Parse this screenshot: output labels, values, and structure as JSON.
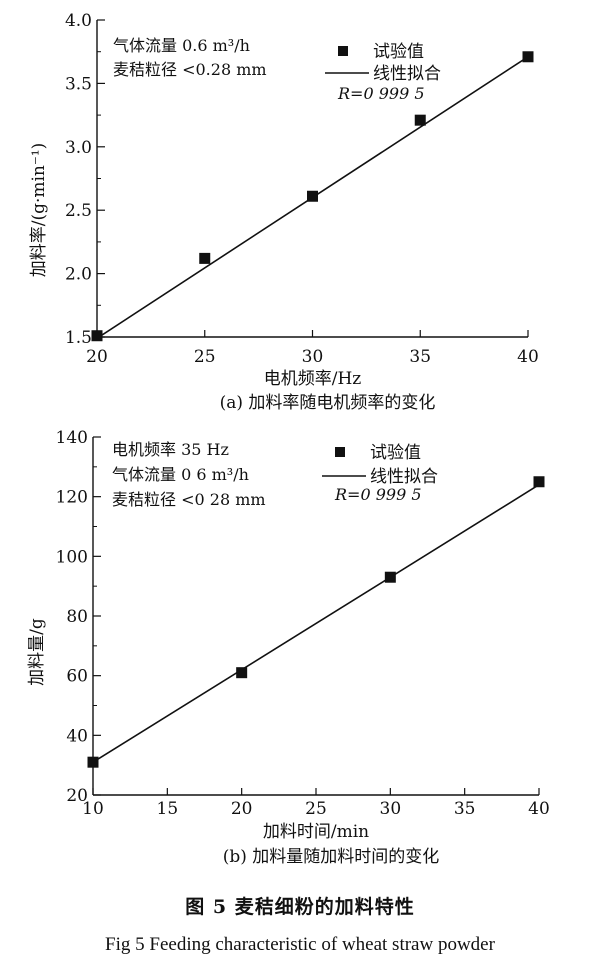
{
  "chart_data": [
    {
      "type": "scatter",
      "panel_caption": "(a) 加料率随电机频率的变化",
      "xlabel": "电机频率/Hz",
      "ylabel": "加料率/(g·min⁻¹)",
      "xlim": [
        20,
        40
      ],
      "ylim": [
        1.5,
        4.0
      ],
      "x_ticks": [
        "20",
        "25",
        "30",
        "35",
        "40"
      ],
      "y_ticks": [
        "1.5",
        "2.0",
        "2.5",
        "3.0",
        "3.5",
        "4.0"
      ],
      "conditions": [
        "气体流量 0.6 m³/h",
        "麦秸粒径 <0.28 mm"
      ],
      "legend_labels": [
        "试验值",
        "线性拟合"
      ],
      "legend_placement": "top-right",
      "fit_text": "R=0 999 5",
      "series": [
        {
          "name": "试验值",
          "x": [
            20,
            25,
            30,
            35,
            40
          ],
          "y": [
            1.51,
            2.12,
            2.61,
            3.21,
            3.71
          ]
        },
        {
          "name": "线性拟合",
          "x": [
            20,
            40
          ],
          "y": [
            1.49,
            3.71
          ]
        }
      ]
    },
    {
      "type": "scatter",
      "panel_caption": "(b) 加料量随加料时间的变化",
      "xlabel": "加料时间/min",
      "ylabel": "加料量/g",
      "xlim": [
        10,
        40
      ],
      "ylim": [
        20,
        140
      ],
      "x_ticks": [
        "10",
        "15",
        "20",
        "25",
        "30",
        "35",
        "40"
      ],
      "y_ticks": [
        "20",
        "40",
        "60",
        "80",
        "100",
        "120",
        "140"
      ],
      "conditions": [
        "电机频率 35 Hz",
        "气体流量 0 6 m³/h",
        "麦秸粒径 <0 28 mm"
      ],
      "legend_labels": [
        "试验值",
        "线性拟合"
      ],
      "legend_placement": "top-right",
      "fit_text": "R=0 999 5",
      "series": [
        {
          "name": "试验值",
          "x": [
            10,
            20,
            30,
            40
          ],
          "y": [
            31,
            61,
            93,
            125
          ]
        },
        {
          "name": "线性拟合",
          "x": [
            10,
            40
          ],
          "y": [
            31,
            124
          ]
        }
      ]
    }
  ],
  "caption_cn": "图 5 麦秸细粉的加料特性",
  "caption_en": "Fig 5  Feeding characteristic of wheat straw powder"
}
